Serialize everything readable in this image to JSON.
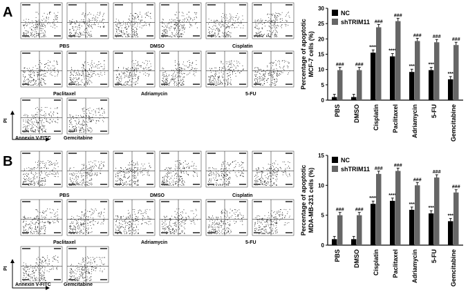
{
  "panels": [
    {
      "letter": "A",
      "flow_labels": [
        "PBS",
        "DMSO",
        "Cisplatin",
        "Paclitaxel",
        "Adriamycin",
        "5-FU",
        "Gemcitabine"
      ],
      "axis_x_label": "Annexin V-FITC",
      "axis_y_label": "PI",
      "chart_data": {
        "type": "bar",
        "ylabel": "Percentage of apoptotic MCF-7 cells (%)",
        "ylabel_lines": [
          "Percentage of apoptotic",
          "MCF-7 cells (%)"
        ],
        "categories": [
          "PBS",
          "DMSO",
          "Cisplatin",
          "Paclitaxel",
          "Adriamycin",
          "5-FU",
          "Gemcitabine"
        ],
        "ylim": [
          0,
          30
        ],
        "yticks": [
          0,
          5,
          10,
          15,
          20,
          25,
          30
        ],
        "series": [
          {
            "name": "NC",
            "color": "#000000",
            "values": [
              1.0,
              1.0,
              15.5,
              14.3,
              9.2,
              9.8,
              6.8
            ],
            "annotations": [
              "",
              "",
              "****",
              "****",
              "***",
              "***",
              "***"
            ]
          },
          {
            "name": "shTRIM11",
            "color": "#666666",
            "values": [
              9.8,
              9.8,
              23.8,
              25.8,
              19.3,
              18.9,
              18.0
            ],
            "annotations": [
              "###",
              "###",
              "###",
              "###",
              "###",
              "###",
              "###"
            ]
          }
        ],
        "legend": "top-left"
      }
    },
    {
      "letter": "B",
      "flow_labels": [
        "PBS",
        "DMSO",
        "Cisplatin",
        "Paclitaxel",
        "Adriamycin",
        "5-FU",
        "Gemcitabine"
      ],
      "axis_x_label": "Annexin V-FITC",
      "axis_y_label": "PI",
      "chart_data": {
        "type": "bar",
        "ylabel": "Percentage of apoptotic MDA-MB-231 cells (%)",
        "ylabel_lines": [
          "Percentage of apoptotic",
          "MDA-MB-231 cells (%)"
        ],
        "categories": [
          "PBS",
          "DMSO",
          "Cisplatin",
          "Paclitaxel",
          "Adriamycin",
          "5-FU",
          "Gemcitabine"
        ],
        "ylim": [
          0,
          15
        ],
        "yticks": [
          0,
          5,
          10,
          15
        ],
        "series": [
          {
            "name": "NC",
            "color": "#000000",
            "values": [
              1.0,
              1.0,
              6.9,
              7.4,
              5.9,
              5.3,
              4.0
            ],
            "annotations": [
              "",
              "",
              "****",
              "****",
              "***",
              "***",
              "***"
            ]
          },
          {
            "name": "shTRIM11",
            "color": "#666666",
            "values": [
              5.0,
              5.0,
              11.9,
              12.4,
              10.0,
              11.3,
              8.8
            ],
            "annotations": [
              "###",
              "###",
              "###",
              "###",
              "###",
              "###",
              "###"
            ]
          }
        ],
        "legend": "top-left"
      }
    }
  ]
}
